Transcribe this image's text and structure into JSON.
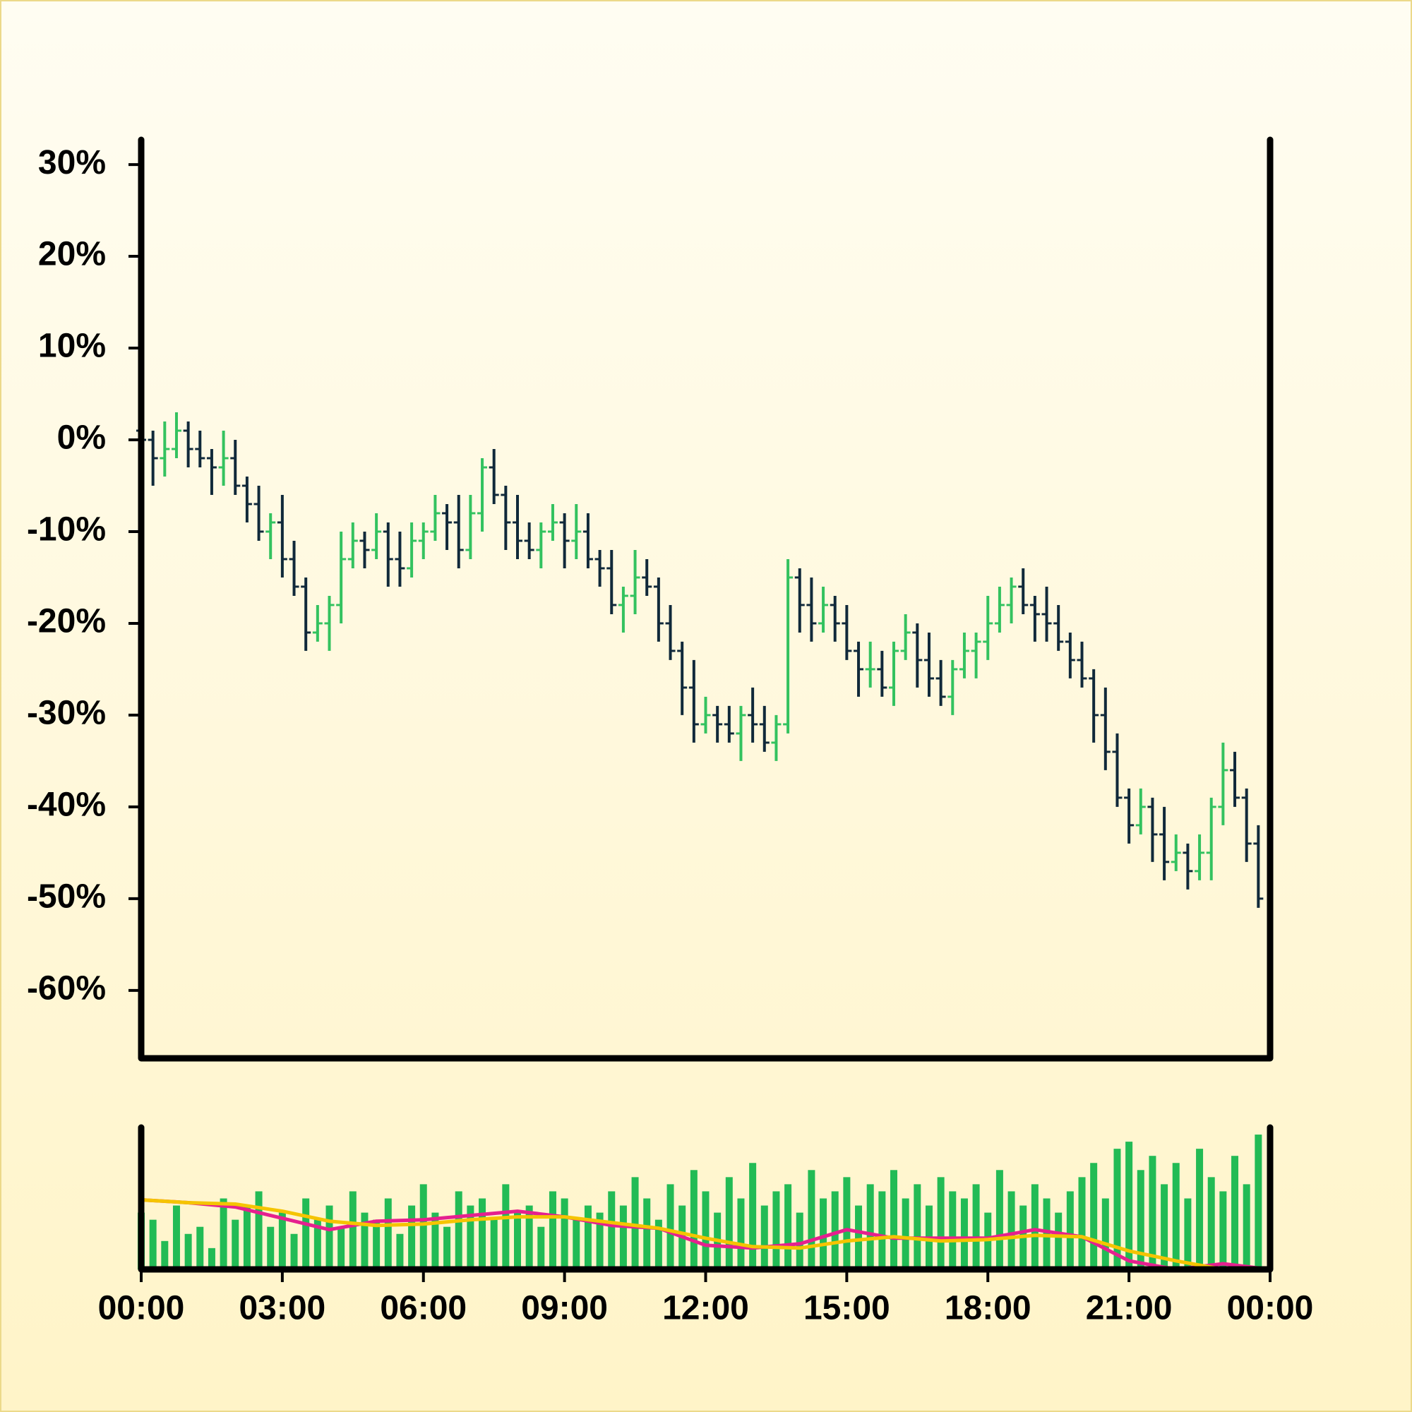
{
  "chart_data": [
    {
      "type": "ohlc",
      "x": [
        0,
        0.25,
        0.5,
        0.75,
        1,
        1.25,
        1.5,
        1.75,
        2,
        2.25,
        2.5,
        2.75,
        3,
        3.25,
        3.5,
        3.75,
        4,
        4.25,
        4.5,
        4.75,
        5,
        5.25,
        5.5,
        5.75,
        6,
        6.25,
        6.5,
        6.75,
        7,
        7.25,
        7.5,
        7.75,
        8,
        8.25,
        8.5,
        8.75,
        9,
        9.25,
        9.5,
        9.75,
        10,
        10.25,
        10.5,
        10.75,
        11,
        11.25,
        11.5,
        11.75,
        12,
        12.25,
        12.5,
        12.75,
        13,
        13.25,
        13.5,
        13.75,
        14,
        14.25,
        14.5,
        14.75,
        15,
        15.25,
        15.5,
        15.75,
        16,
        16.25,
        16.5,
        16.75,
        17,
        17.25,
        17.5,
        17.75,
        18,
        18.25,
        18.5,
        18.75,
        19,
        19.25,
        19.5,
        19.75,
        20,
        20.25,
        20.5,
        20.75,
        21,
        21.25,
        21.5,
        21.75,
        22,
        22.25,
        22.5,
        22.75,
        23,
        23.25,
        23.5,
        23.75
      ],
      "open": [
        1,
        0,
        -2,
        -1,
        1,
        -1,
        -2,
        -3,
        -2,
        -5,
        -7,
        -10,
        -9,
        -13,
        -16,
        -21,
        -20,
        -18,
        -13,
        -11,
        -12,
        -10,
        -13,
        -14,
        -11,
        -10,
        -8,
        -9,
        -12,
        -8,
        -3,
        -6,
        -9,
        -11,
        -12,
        -10,
        -9,
        -11,
        -10,
        -13,
        -14,
        -18,
        -17,
        -15,
        -16,
        -20,
        -23,
        -27,
        -31,
        -30,
        -31,
        -32,
        -30,
        -31,
        -33,
        -31,
        -15,
        -18,
        -20,
        -18,
        -20,
        -23,
        -25,
        -25,
        -27,
        -23,
        -21,
        -24,
        -26,
        -28,
        -25,
        -23,
        -22,
        -20,
        -18,
        -16,
        -18,
        -19,
        -20,
        -22,
        -24,
        -26,
        -30,
        -34,
        -39,
        -42,
        -40,
        -43,
        -46,
        -45,
        -47,
        -45,
        -40,
        -36,
        -39,
        -44
      ],
      "high": [
        3,
        1,
        2,
        3,
        2,
        1,
        -1,
        1,
        0,
        -4,
        -5,
        -8,
        -6,
        -11,
        -15,
        -18,
        -17,
        -10,
        -9,
        -10,
        -8,
        -9,
        -10,
        -9,
        -9,
        -6,
        -7,
        -6,
        -6,
        -2,
        -1,
        -5,
        -6,
        -9,
        -9,
        -7,
        -8,
        -7,
        -8,
        -12,
        -12,
        -16,
        -12,
        -13,
        -15,
        -18,
        -22,
        -24,
        -28,
        -29,
        -29,
        -29,
        -27,
        -29,
        -30,
        -13,
        -14,
        -15,
        -16,
        -17,
        -18,
        -22,
        -22,
        -23,
        -22,
        -19,
        -20,
        -21,
        -24,
        -24,
        -21,
        -21,
        -17,
        -16,
        -15,
        -14,
        -17,
        -16,
        -18,
        -21,
        -22,
        -25,
        -27,
        -32,
        -38,
        -38,
        -39,
        -40,
        -43,
        -44,
        -43,
        -39,
        -33,
        -34,
        -38,
        -42
      ],
      "low": [
        -1,
        -5,
        -4,
        -2,
        -3,
        -3,
        -6,
        -5,
        -6,
        -9,
        -11,
        -13,
        -15,
        -17,
        -23,
        -22,
        -23,
        -20,
        -14,
        -14,
        -13,
        -16,
        -16,
        -15,
        -13,
        -11,
        -12,
        -14,
        -13,
        -10,
        -7,
        -12,
        -13,
        -13,
        -14,
        -11,
        -14,
        -13,
        -14,
        -16,
        -19,
        -21,
        -19,
        -17,
        -22,
        -24,
        -30,
        -33,
        -32,
        -33,
        -33,
        -35,
        -33,
        -34,
        -35,
        -32,
        -21,
        -22,
        -21,
        -22,
        -24,
        -28,
        -27,
        -28,
        -29,
        -24,
        -27,
        -28,
        -29,
        -30,
        -26,
        -26,
        -24,
        -21,
        -20,
        -19,
        -22,
        -22,
        -23,
        -26,
        -27,
        -33,
        -36,
        -40,
        -44,
        -43,
        -46,
        -48,
        -47,
        -49,
        -48,
        -48,
        -42,
        -40,
        -46,
        -51
      ],
      "close": [
        0,
        -2,
        -1,
        1,
        -1,
        -2,
        -3,
        -2,
        -5,
        -7,
        -10,
        -9,
        -13,
        -16,
        -21,
        -20,
        -18,
        -13,
        -11,
        -12,
        -10,
        -13,
        -14,
        -11,
        -10,
        -8,
        -9,
        -12,
        -8,
        -3,
        -6,
        -9,
        -11,
        -12,
        -10,
        -9,
        -11,
        -10,
        -13,
        -14,
        -18,
        -17,
        -15,
        -16,
        -20,
        -23,
        -27,
        -31,
        -30,
        -31,
        -32,
        -30,
        -31,
        -33,
        -31,
        -15,
        -18,
        -20,
        -18,
        -20,
        -23,
        -25,
        -25,
        -27,
        -23,
        -21,
        -24,
        -26,
        -28,
        -25,
        -23,
        -22,
        -20,
        -18,
        -16,
        -18,
        -19,
        -20,
        -22,
        -24,
        -26,
        -30,
        -34,
        -39,
        -42,
        -40,
        -43,
        -46,
        -45,
        -47,
        -45,
        -40,
        -36,
        -39,
        -44,
        -50
      ],
      "up_color": "#33c25f",
      "down_color": "#10293a",
      "xlim": [
        0,
        24
      ],
      "ylim": [
        -67.4,
        32.7
      ],
      "yticks": [
        {
          "value": 30,
          "label": "30%"
        },
        {
          "value": 20,
          "label": "20%"
        },
        {
          "value": 10,
          "label": "10%"
        },
        {
          "value": 0,
          "label": "0%"
        },
        {
          "value": -10,
          "label": "-10%"
        },
        {
          "value": -20,
          "label": "-20%"
        },
        {
          "value": -30,
          "label": "-30%"
        },
        {
          "value": -40,
          "label": "-40%"
        },
        {
          "value": -50,
          "label": "-50%"
        },
        {
          "value": -60,
          "label": "-60%"
        }
      ]
    },
    {
      "type": "bar",
      "x": [
        0,
        0.25,
        0.5,
        0.75,
        1,
        1.25,
        1.5,
        1.75,
        2,
        2.25,
        2.5,
        2.75,
        3,
        3.25,
        3.5,
        3.75,
        4,
        4.25,
        4.5,
        4.75,
        5,
        5.25,
        5.5,
        5.75,
        6,
        6.25,
        6.5,
        6.75,
        7,
        7.25,
        7.5,
        7.75,
        8,
        8.25,
        8.5,
        8.75,
        9,
        9.25,
        9.5,
        9.75,
        10,
        10.25,
        10.5,
        10.75,
        11,
        11.25,
        11.5,
        11.75,
        12,
        12.25,
        12.5,
        12.75,
        13,
        13.25,
        13.5,
        13.75,
        14,
        14.25,
        14.5,
        14.75,
        15,
        15.25,
        15.5,
        15.75,
        16,
        16.25,
        16.5,
        16.75,
        17,
        17.25,
        17.5,
        17.75,
        18,
        18.25,
        18.5,
        18.75,
        19,
        19.25,
        19.5,
        19.75,
        20,
        20.25,
        20.5,
        20.75,
        21,
        21.25,
        21.5,
        21.75,
        22,
        22.25,
        22.5,
        22.75,
        23,
        23.25,
        23.5,
        23.75
      ],
      "values": [
        40,
        35,
        20,
        45,
        25,
        30,
        15,
        50,
        35,
        45,
        55,
        30,
        40,
        25,
        50,
        35,
        45,
        30,
        55,
        40,
        35,
        50,
        25,
        45,
        60,
        40,
        30,
        55,
        45,
        50,
        35,
        60,
        40,
        45,
        30,
        55,
        50,
        35,
        45,
        40,
        55,
        45,
        65,
        50,
        35,
        60,
        45,
        70,
        55,
        40,
        65,
        50,
        75,
        45,
        55,
        60,
        40,
        70,
        50,
        55,
        65,
        45,
        60,
        55,
        70,
        50,
        60,
        45,
        65,
        55,
        50,
        60,
        40,
        70,
        55,
        45,
        60,
        50,
        40,
        55,
        65,
        75,
        50,
        85,
        90,
        70,
        80,
        60,
        75,
        50,
        85,
        65,
        55,
        80,
        60,
        95
      ],
      "color": "#22bb55",
      "xlim": [
        0,
        24
      ],
      "ylim": [
        0,
        100
      ],
      "xticks": [
        {
          "value": 0,
          "label": "00:00"
        },
        {
          "value": 3,
          "label": "03:00"
        },
        {
          "value": 6,
          "label": "06:00"
        },
        {
          "value": 9,
          "label": "09:00"
        },
        {
          "value": 12,
          "label": "12:00"
        },
        {
          "value": 15,
          "label": "15:00"
        },
        {
          "value": 18,
          "label": "18:00"
        },
        {
          "value": 21,
          "label": "21:00"
        },
        {
          "value": 24,
          "label": "00:00"
        }
      ],
      "lines": [
        {
          "color": "#e5208f",
          "x": [
            0,
            1,
            2,
            3,
            4,
            5,
            6,
            7,
            8,
            9,
            10,
            11,
            12,
            13,
            14,
            15,
            16,
            17,
            18,
            19,
            20,
            21,
            22,
            23,
            24
          ],
          "values": [
            49,
            47,
            44,
            36,
            28,
            34,
            35,
            38,
            41,
            37,
            31,
            29,
            17,
            15,
            18,
            28,
            22,
            22,
            22,
            28,
            23,
            6,
            0,
            4,
            0
          ]
        },
        {
          "color": "#f5c400",
          "x": [
            0,
            1,
            2,
            3,
            4,
            5,
            6,
            7,
            8,
            9,
            10,
            11,
            12,
            13,
            14,
            15,
            16,
            17,
            18,
            19,
            20,
            21,
            22,
            23,
            24
          ],
          "values": [
            49,
            47,
            46,
            41,
            34,
            31,
            32,
            35,
            37,
            37,
            33,
            29,
            22,
            16,
            15,
            20,
            23,
            20,
            21,
            24,
            23,
            13,
            6,
            0,
            0
          ]
        }
      ]
    }
  ]
}
